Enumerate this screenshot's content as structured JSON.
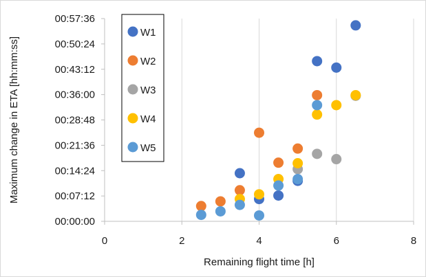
{
  "chart_data": {
    "type": "scatter",
    "title": "",
    "xlabel": "Remaining flight time [h]",
    "ylabel": "Maximum change in ETA [hh:mm:ss]",
    "xlim": [
      0,
      8
    ],
    "x_ticks": [
      0,
      2,
      4,
      6,
      8
    ],
    "ylim_seconds": [
      0,
      3456
    ],
    "y_ticks_seconds": [
      0,
      432,
      864,
      1296,
      1728,
      2160,
      2592,
      3024,
      3456
    ],
    "y_tick_labels": [
      "00:00:00",
      "00:07:12",
      "00:14:24",
      "00:21:36",
      "00:28:48",
      "00:36:00",
      "00:43:12",
      "00:50:24",
      "00:57:36"
    ],
    "grid": "vertical major gridlines",
    "legend_position": "top-left, boxed",
    "series": [
      {
        "name": "W1",
        "color": "#4472c4",
        "points": [
          {
            "x": 3.5,
            "y_seconds": 820
          },
          {
            "x": 4.0,
            "y_seconds": 380
          },
          {
            "x": 4.5,
            "y_seconds": 440
          },
          {
            "x": 5.0,
            "y_seconds": 690
          },
          {
            "x": 5.5,
            "y_seconds": 2730
          },
          {
            "x": 6.0,
            "y_seconds": 2620
          },
          {
            "x": 6.5,
            "y_seconds": 3340
          }
        ]
      },
      {
        "name": "W2",
        "color": "#ed7d31",
        "points": [
          {
            "x": 2.5,
            "y_seconds": 260
          },
          {
            "x": 3.0,
            "y_seconds": 340
          },
          {
            "x": 3.5,
            "y_seconds": 530
          },
          {
            "x": 4.0,
            "y_seconds": 1510
          },
          {
            "x": 4.5,
            "y_seconds": 1000
          },
          {
            "x": 5.0,
            "y_seconds": 1240
          },
          {
            "x": 5.5,
            "y_seconds": 2150
          }
        ]
      },
      {
        "name": "W3",
        "color": "#a5a5a5",
        "points": [
          {
            "x": 5.0,
            "y_seconds": 890
          },
          {
            "x": 5.5,
            "y_seconds": 1150
          },
          {
            "x": 6.0,
            "y_seconds": 1060
          },
          {
            "x": 6.5,
            "y_seconds": 2140
          }
        ]
      },
      {
        "name": "W4",
        "color": "#ffc000",
        "points": [
          {
            "x": 3.5,
            "y_seconds": 380
          },
          {
            "x": 4.0,
            "y_seconds": 460
          },
          {
            "x": 4.5,
            "y_seconds": 720
          },
          {
            "x": 5.0,
            "y_seconds": 990
          },
          {
            "x": 5.5,
            "y_seconds": 1820
          },
          {
            "x": 6.0,
            "y_seconds": 1980
          },
          {
            "x": 6.5,
            "y_seconds": 2150
          }
        ]
      },
      {
        "name": "W5",
        "color": "#5b9bd5",
        "points": [
          {
            "x": 2.5,
            "y_seconds": 110
          },
          {
            "x": 3.0,
            "y_seconds": 170
          },
          {
            "x": 3.5,
            "y_seconds": 280
          },
          {
            "x": 4.0,
            "y_seconds": 100
          },
          {
            "x": 4.5,
            "y_seconds": 610
          },
          {
            "x": 5.0,
            "y_seconds": 720
          },
          {
            "x": 5.5,
            "y_seconds": 1980
          }
        ]
      }
    ]
  }
}
